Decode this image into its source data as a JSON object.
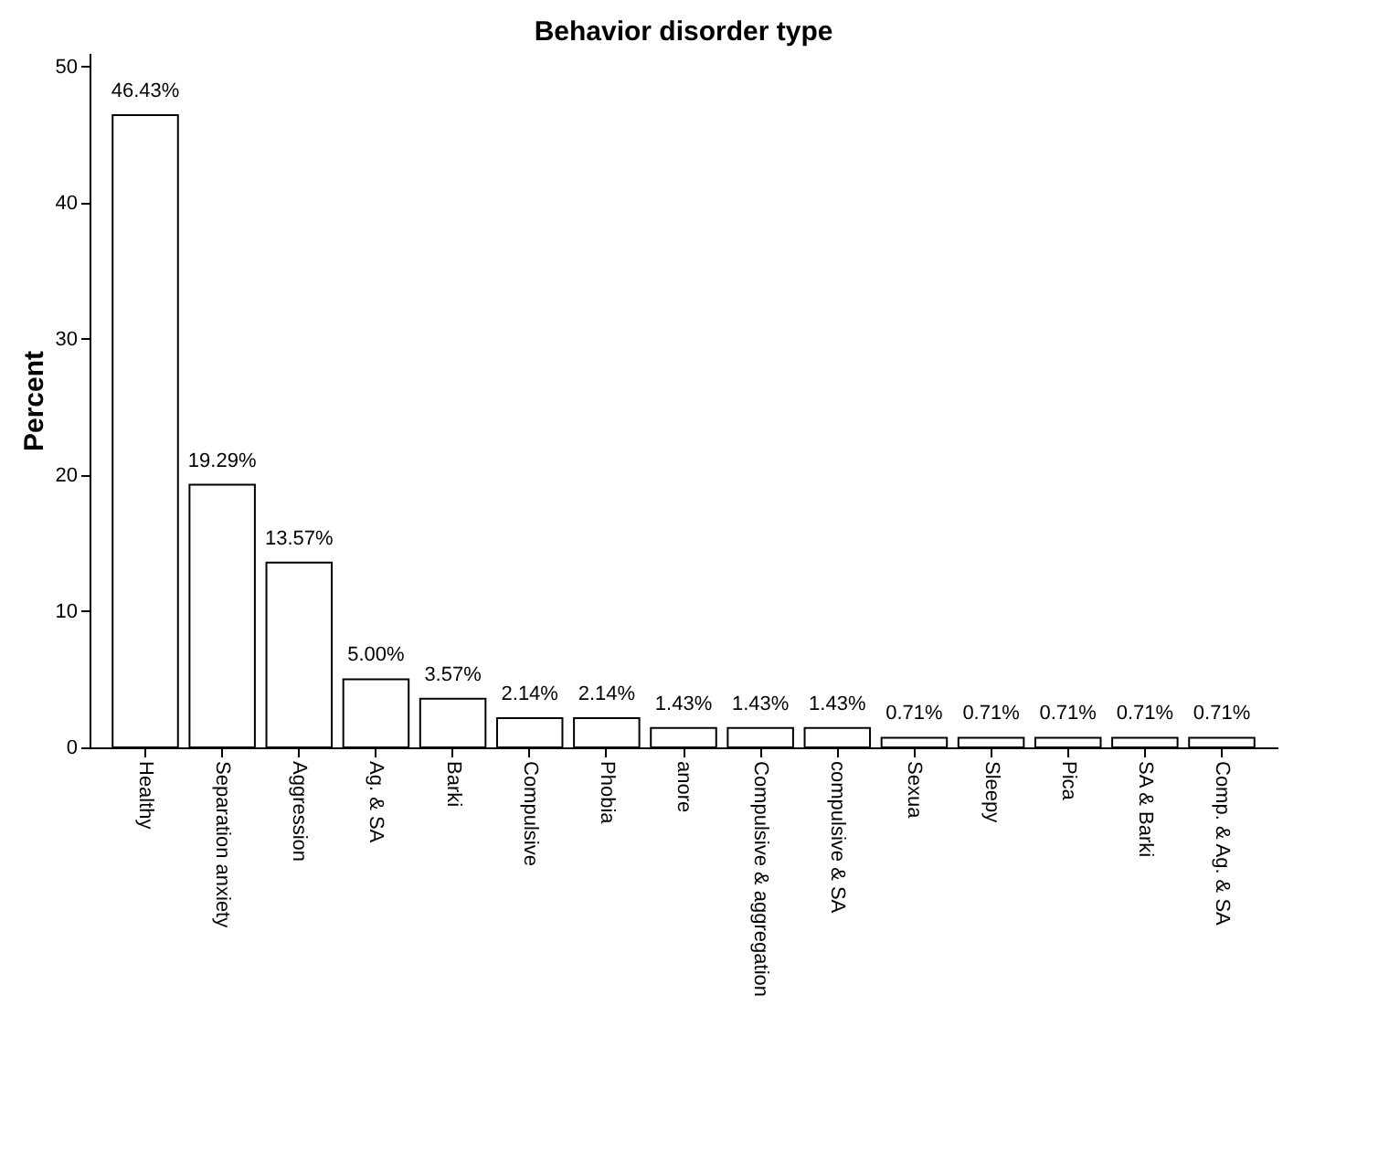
{
  "chart_data": {
    "type": "bar",
    "title": "Behavior disorder type",
    "ylabel": "Percent",
    "categories": [
      "Healthy",
      "Separation anxiety",
      "Aggression",
      "Ag. & SA",
      "Barki",
      "Compulsive",
      "Phobia",
      "anore",
      "Compulsive & aggregation",
      "compulsive & SA",
      "Sexua",
      "Sleepy",
      "Pica",
      "SA & Barki",
      "Comp. & Ag. & SA"
    ],
    "values": [
      46.43,
      19.29,
      13.57,
      5.0,
      3.57,
      2.14,
      2.14,
      1.43,
      1.43,
      1.43,
      0.71,
      0.71,
      0.71,
      0.71,
      0.71
    ],
    "value_labels": [
      "46.43%",
      "19.29%",
      "13.57%",
      "5.00%",
      "3.57%",
      "2.14%",
      "2.14%",
      "1.43%",
      "1.43%",
      "1.43%",
      "0.71%",
      "0.71%",
      "0.71%",
      "0.71%",
      "0.71%"
    ],
    "color": "#ffffff",
    "ylim": [
      0,
      51
    ],
    "yticks": [
      0,
      10,
      20,
      30,
      40,
      50
    ]
  }
}
